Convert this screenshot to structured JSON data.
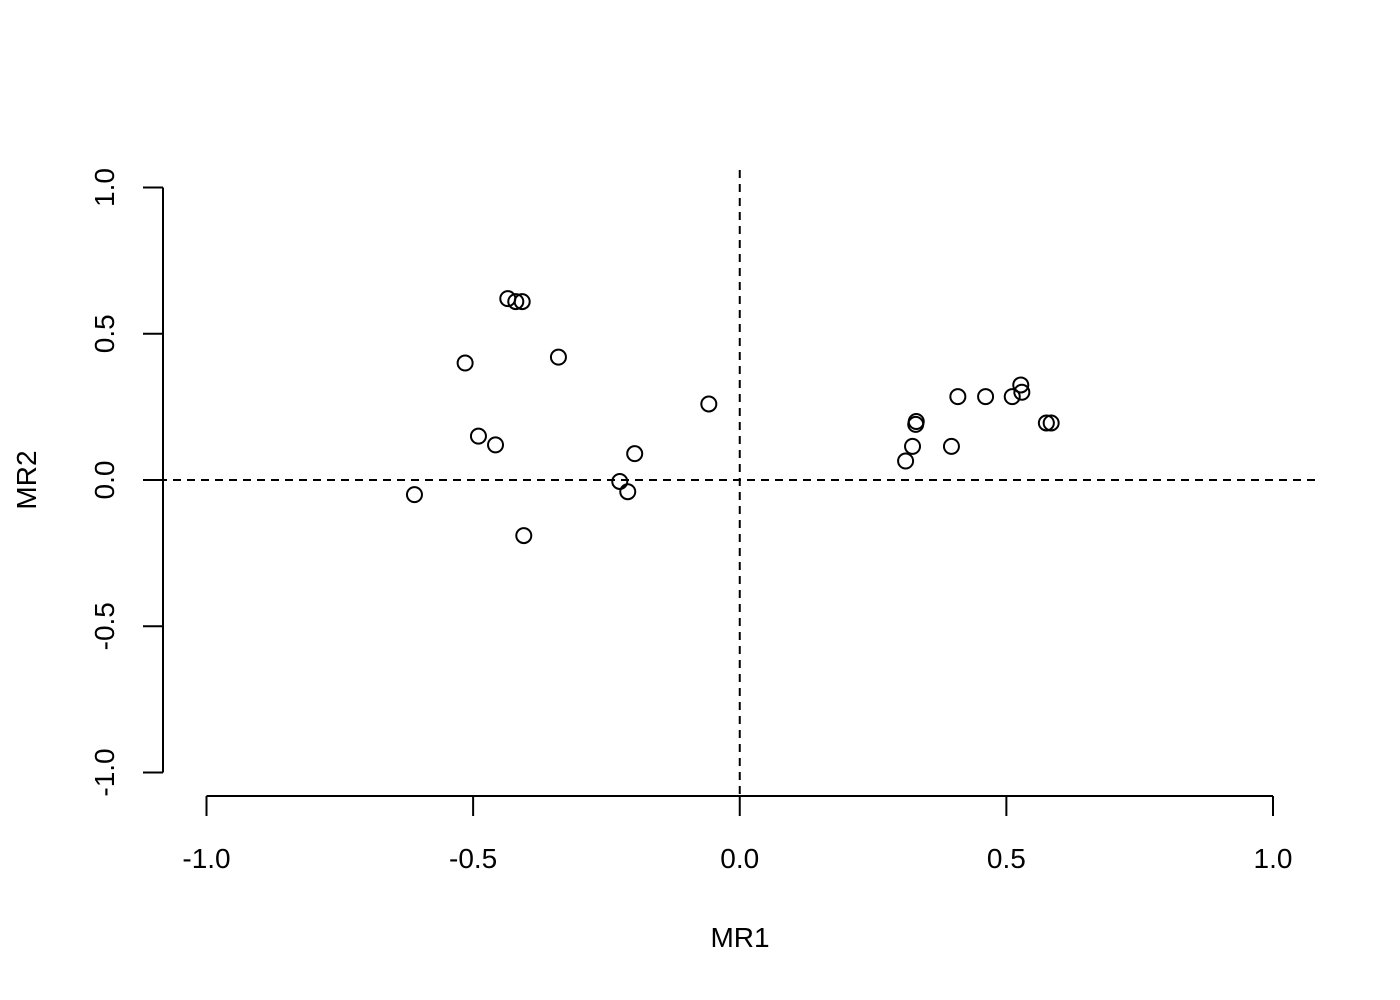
{
  "chart_data": {
    "type": "scatter",
    "title": "",
    "xlabel": "MR1",
    "ylabel": "MR2",
    "xlim": [
      -1.0,
      1.0
    ],
    "ylim": [
      -1.0,
      1.0
    ],
    "x_ticks": [
      -1.0,
      -0.5,
      0.0,
      0.5,
      1.0
    ],
    "x_tick_labels": [
      "-1.0",
      "-0.5",
      "0.0",
      "0.5",
      "1.0"
    ],
    "y_ticks": [
      -1.0,
      -0.5,
      0.0,
      0.5,
      1.0
    ],
    "y_tick_labels": [
      "-1.0",
      "-0.5",
      "0.0",
      "0.5",
      "1.0"
    ],
    "grid": false,
    "reference_lines": [
      {
        "axis": "x",
        "value": 0.0,
        "style": "dashed"
      },
      {
        "axis": "y",
        "value": 0.0,
        "style": "dashed"
      }
    ],
    "marker": "open-circle",
    "points": [
      {
        "x": -0.435,
        "y": 0.62
      },
      {
        "x": -0.42,
        "y": 0.61
      },
      {
        "x": -0.408,
        "y": 0.61
      },
      {
        "x": -0.515,
        "y": 0.4
      },
      {
        "x": -0.34,
        "y": 0.42
      },
      {
        "x": -0.49,
        "y": 0.15
      },
      {
        "x": -0.458,
        "y": 0.12
      },
      {
        "x": -0.61,
        "y": -0.05
      },
      {
        "x": -0.405,
        "y": -0.19
      },
      {
        "x": -0.225,
        "y": -0.005
      },
      {
        "x": -0.21,
        "y": -0.04
      },
      {
        "x": -0.197,
        "y": 0.09
      },
      {
        "x": -0.058,
        "y": 0.26
      },
      {
        "x": 0.311,
        "y": 0.065
      },
      {
        "x": 0.324,
        "y": 0.115
      },
      {
        "x": 0.33,
        "y": 0.19
      },
      {
        "x": 0.331,
        "y": 0.2
      },
      {
        "x": 0.397,
        "y": 0.115
      },
      {
        "x": 0.409,
        "y": 0.285
      },
      {
        "x": 0.461,
        "y": 0.285
      },
      {
        "x": 0.511,
        "y": 0.285
      },
      {
        "x": 0.527,
        "y": 0.325
      },
      {
        "x": 0.529,
        "y": 0.3
      },
      {
        "x": 0.575,
        "y": 0.195
      },
      {
        "x": 0.584,
        "y": 0.195
      }
    ]
  }
}
